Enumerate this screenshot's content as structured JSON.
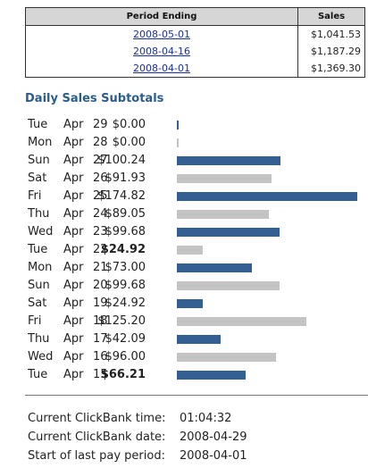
{
  "period_table": {
    "headers": {
      "period_ending": "Period Ending",
      "sales": "Sales"
    },
    "rows": [
      {
        "date": "2008-05-01",
        "sales": "$1,041.53"
      },
      {
        "date": "2008-04-16",
        "sales": "$1,187.29"
      },
      {
        "date": "2008-04-01",
        "sales": "$1,369.30"
      }
    ]
  },
  "daily": {
    "title": "Daily Sales Subtotals",
    "colors": {
      "blue": "#335f93",
      "gray": "#c4c4c4"
    },
    "rows": [
      {
        "day": "Tue",
        "month": "Apr",
        "date": "29",
        "amount": "$0.00",
        "value": 0,
        "bold": false,
        "color": "blue"
      },
      {
        "day": "Mon",
        "month": "Apr",
        "date": "28",
        "amount": "$0.00",
        "value": 0,
        "bold": false,
        "color": "gray"
      },
      {
        "day": "Sun",
        "month": "Apr",
        "date": "27",
        "amount": "$100.24",
        "value": 100.24,
        "bold": false,
        "color": "blue"
      },
      {
        "day": "Sat",
        "month": "Apr",
        "date": "26",
        "amount": "$91.93",
        "value": 91.93,
        "bold": false,
        "color": "gray"
      },
      {
        "day": "Fri",
        "month": "Apr",
        "date": "25",
        "amount": "$174.82",
        "value": 174.82,
        "bold": false,
        "color": "blue"
      },
      {
        "day": "Thu",
        "month": "Apr",
        "date": "24",
        "amount": "$89.05",
        "value": 89.05,
        "bold": false,
        "color": "gray"
      },
      {
        "day": "Wed",
        "month": "Apr",
        "date": "23",
        "amount": "$99.68",
        "value": 99.68,
        "bold": false,
        "color": "blue"
      },
      {
        "day": "Tue",
        "month": "Apr",
        "date": "22",
        "amount": "$24.92",
        "value": 24.92,
        "bold": true,
        "color": "gray"
      },
      {
        "day": "Mon",
        "month": "Apr",
        "date": "21",
        "amount": "$73.00",
        "value": 73.0,
        "bold": false,
        "color": "blue"
      },
      {
        "day": "Sun",
        "month": "Apr",
        "date": "20",
        "amount": "$99.68",
        "value": 99.68,
        "bold": false,
        "color": "gray"
      },
      {
        "day": "Sat",
        "month": "Apr",
        "date": "19",
        "amount": "$24.92",
        "value": 24.92,
        "bold": false,
        "color": "blue"
      },
      {
        "day": "Fri",
        "month": "Apr",
        "date": "18",
        "amount": "$125.20",
        "value": 125.2,
        "bold": false,
        "color": "gray"
      },
      {
        "day": "Thu",
        "month": "Apr",
        "date": "17",
        "amount": "$42.09",
        "value": 42.09,
        "bold": false,
        "color": "blue"
      },
      {
        "day": "Wed",
        "month": "Apr",
        "date": "16",
        "amount": "$96.00",
        "value": 96.0,
        "bold": false,
        "color": "gray"
      },
      {
        "day": "Tue",
        "month": "Apr",
        "date": "15",
        "amount": "$66.21",
        "value": 66.21,
        "bold": true,
        "color": "blue"
      }
    ]
  },
  "info": {
    "current_time_label": "Current ClickBank time:",
    "current_time": "01:04:32",
    "current_date_label": "Current ClickBank date:",
    "current_date": "2008-04-29",
    "pay_period_label": "Start of last pay period:",
    "pay_period": "2008-04-01"
  }
}
